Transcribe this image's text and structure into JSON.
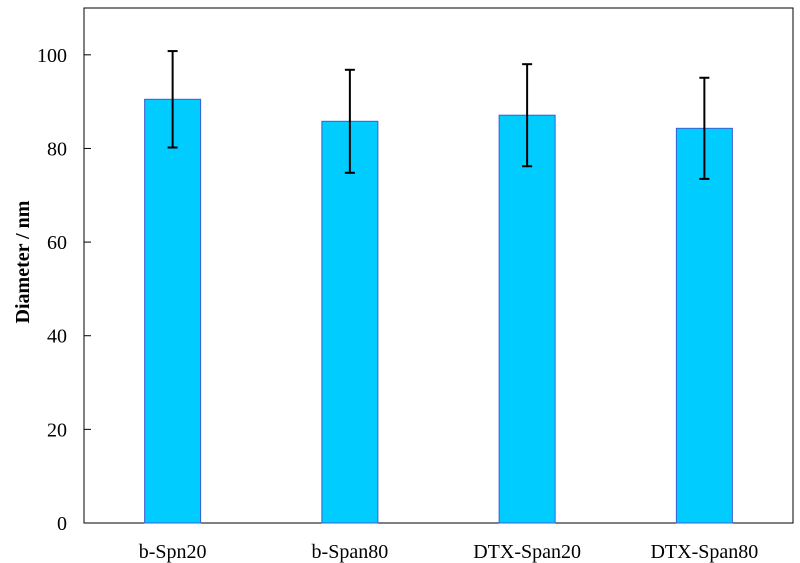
{
  "chart_data": {
    "type": "bar",
    "title": "",
    "xlabel": "",
    "ylabel": "Diameter / nm",
    "ylim": [
      0,
      110
    ],
    "yticks": [
      0,
      20,
      40,
      60,
      80,
      100
    ],
    "grid": false,
    "legend": "none",
    "categories": [
      "b-Spn20",
      "b-Span80",
      "DTX-Span20",
      "DTX-Span80"
    ],
    "values": [
      90.5,
      85.8,
      87.1,
      84.3
    ],
    "error": [
      10.3,
      11.0,
      10.9,
      10.8
    ],
    "bar_color": "#00ccff",
    "bar_edge_color": "#3a5fcd"
  }
}
